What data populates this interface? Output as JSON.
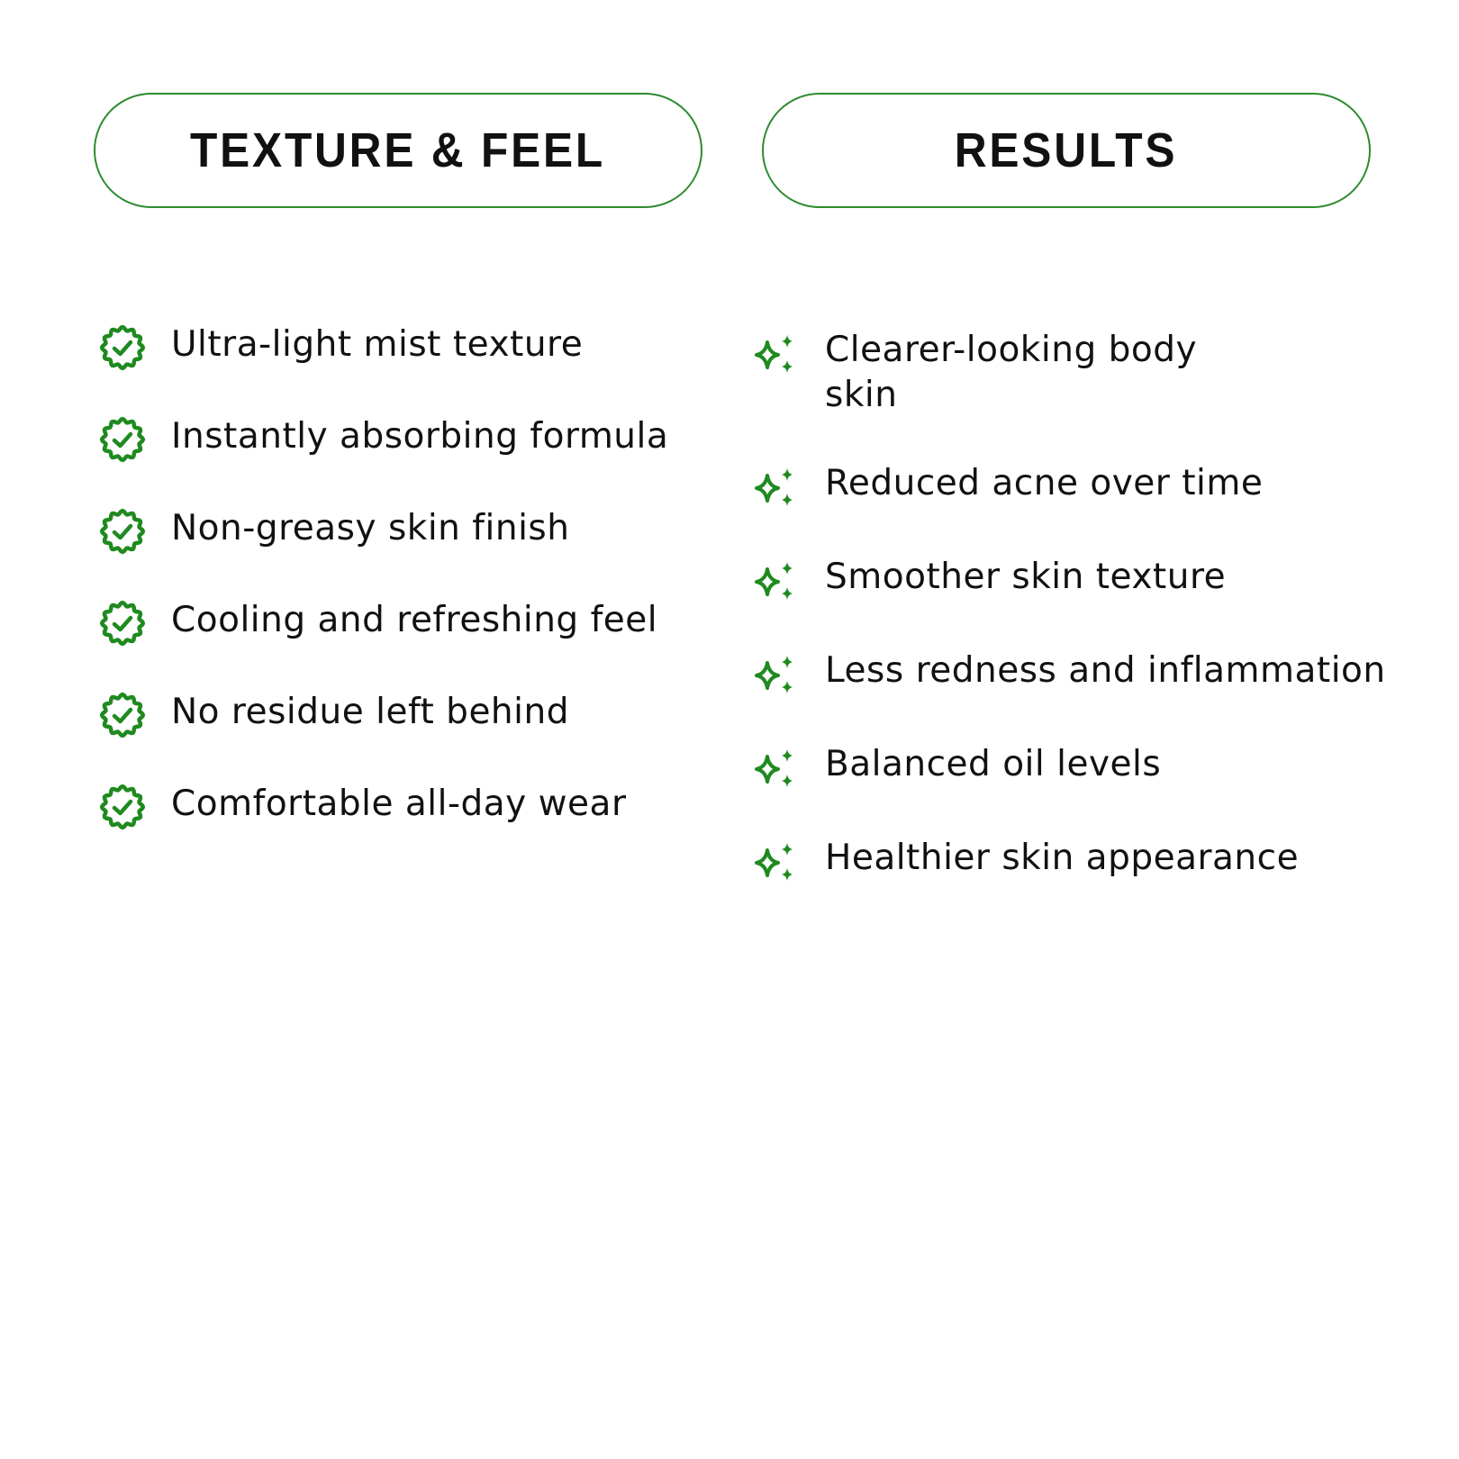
{
  "accent_color": "#1f8a1f",
  "left": {
    "title": "TEXTURE & FEEL",
    "icon": "badge-check-icon",
    "items": [
      "Ultra-light mist texture",
      "Instantly absorbing formula",
      "Non-greasy skin finish",
      "Cooling and refreshing feel",
      "No residue left behind",
      "Comfortable all-day wear"
    ]
  },
  "right": {
    "title": "RESULTS",
    "icon": "sparkles-icon",
    "items": [
      "Clearer-looking body skin",
      "Reduced acne over time",
      "Smoother skin texture",
      "Less redness and inflammation",
      "Balanced oil levels",
      "Healthier skin appearance"
    ]
  }
}
